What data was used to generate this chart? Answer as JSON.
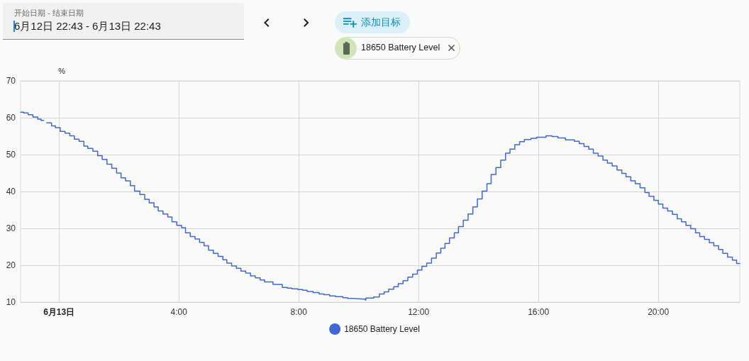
{
  "chart_data": {
    "type": "step",
    "ylabel": "%",
    "annotations": [
      "开始日期 - 结束日期",
      "6月12日 22:43 - 6月13日 22:43",
      "添加目标"
    ],
    "x": [
      -1.278,
      -1.18,
      -1.03,
      -0.87,
      -0.71,
      -0.6,
      -0.51,
      -0.41,
      -0.25,
      -0.12,
      0.04,
      0.2,
      0.36,
      0.51,
      0.67,
      0.83,
      0.96,
      1.13,
      1.29,
      1.44,
      1.6,
      1.76,
      1.92,
      2.07,
      2.22,
      2.38,
      2.52,
      2.7,
      2.86,
      3.01,
      3.17,
      3.31,
      3.47,
      3.63,
      3.77,
      3.93,
      4.09,
      4.22,
      4.38,
      4.54,
      4.69,
      4.84,
      4.99,
      5.15,
      5.31,
      5.47,
      5.6,
      5.76,
      5.92,
      6.07,
      6.23,
      6.39,
      6.55,
      6.71,
      6.86,
      7.14,
      7.45,
      7.62,
      7.77,
      7.97,
      8.13,
      8.28,
      8.48,
      8.68,
      8.84,
      9.03,
      9.23,
      9.47,
      9.63,
      9.78,
      9.98,
      10.22,
      10.24,
      10.5,
      10.69,
      10.85,
      11.0,
      11.17,
      11.32,
      11.48,
      11.64,
      11.8,
      11.96,
      12.11,
      12.27,
      12.43,
      12.59,
      12.74,
      12.88,
      13.03,
      13.19,
      13.33,
      13.49,
      13.65,
      13.81,
      13.96,
      14.12,
      14.28,
      14.42,
      14.58,
      14.74,
      14.9,
      15.05,
      15.21,
      15.37,
      15.53,
      15.75,
      15.94,
      16.25,
      16.45,
      16.65,
      16.9,
      17.2,
      17.36,
      17.52,
      17.68,
      17.83,
      17.99,
      18.15,
      18.3,
      18.46,
      18.62,
      18.78,
      18.92,
      19.08,
      19.23,
      19.39,
      19.55,
      19.69,
      19.85,
      20.0,
      20.15,
      20.31,
      20.47,
      20.63,
      20.77,
      20.92,
      21.08,
      21.24,
      21.38,
      21.54,
      21.7,
      21.85,
      22.01,
      22.15,
      22.31,
      22.47,
      22.61,
      22.717
    ],
    "series": [
      {
        "name": "18650 Battery Level",
        "color": "#4169d6",
        "values": [
          61.5,
          61.3,
          60.8,
          60.2,
          59.6,
          59.3,
          null,
          58.6,
          57.8,
          57.3,
          56.3,
          55.8,
          55.1,
          54.2,
          53.6,
          52.3,
          51.7,
          50.9,
          49.7,
          48.7,
          47.4,
          46.3,
          45.0,
          43.7,
          42.9,
          41.6,
          40.1,
          39.2,
          37.9,
          36.9,
          35.8,
          34.7,
          33.9,
          33.1,
          31.8,
          30.8,
          30.2,
          28.8,
          27.8,
          27.1,
          26.2,
          25.3,
          24.1,
          23.2,
          22.4,
          21.5,
          20.6,
          19.8,
          19.2,
          18.4,
          17.9,
          17.1,
          16.6,
          16.0,
          15.5,
          14.8,
          14.0,
          13.8,
          13.6,
          13.4,
          13.2,
          12.9,
          12.6,
          12.2,
          12.0,
          11.7,
          11.5,
          11.2,
          11.0,
          10.9,
          10.8,
          10.6,
          11.1,
          11.4,
          12.2,
          12.8,
          13.5,
          14.2,
          15.0,
          15.8,
          16.8,
          17.6,
          18.7,
          19.7,
          20.6,
          21.9,
          23.3,
          24.6,
          25.9,
          27.4,
          28.8,
          30.5,
          32.2,
          33.9,
          35.8,
          38.0,
          40.1,
          42.1,
          44.6,
          46.5,
          48.5,
          50.4,
          51.5,
          52.7,
          53.5,
          54.1,
          54.4,
          54.7,
          55.1,
          54.9,
          54.5,
          54.0,
          53.6,
          53.0,
          52.2,
          51.5,
          50.4,
          49.6,
          48.5,
          47.7,
          46.9,
          45.8,
          44.9,
          44.0,
          42.9,
          42.1,
          41.0,
          39.7,
          38.7,
          37.6,
          36.6,
          35.5,
          34.7,
          33.8,
          32.6,
          31.8,
          30.8,
          29.9,
          28.8,
          27.8,
          27.0,
          26.1,
          25.3,
          24.3,
          23.2,
          22.2,
          21.4,
          20.5,
          20.5
        ]
      }
    ],
    "xlim": [
      -1.283,
      22.717
    ],
    "xticks": [
      {
        "value": 0,
        "label": "6月13日"
      },
      {
        "value": 4,
        "label": "4:00"
      },
      {
        "value": 8,
        "label": "8:00"
      },
      {
        "value": 12,
        "label": "12:00"
      },
      {
        "value": 16,
        "label": "16:00"
      },
      {
        "value": 20,
        "label": "20:00"
      }
    ],
    "ylim": [
      10,
      70
    ],
    "yticks": [
      10,
      20,
      30,
      40,
      50,
      60,
      70
    ],
    "grid": true,
    "legend": "bottom"
  }
}
